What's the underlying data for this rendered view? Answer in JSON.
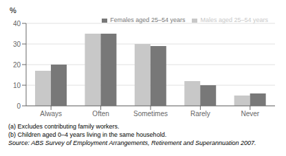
{
  "chart_data": {
    "type": "bar",
    "categories": [
      "Always",
      "Often",
      "Sometimes",
      "Rarely",
      "Never"
    ],
    "series": [
      {
        "name": "Males aged 25–54 years",
        "color": "#c8c8c8",
        "values": [
          17,
          35,
          30,
          12,
          5
        ]
      },
      {
        "name": "Females aged 25–54 years",
        "color": "#787878",
        "values": [
          20,
          35,
          29,
          10,
          6
        ]
      }
    ],
    "y_label": "%",
    "ylim": [
      0,
      40
    ],
    "yticks": [
      0,
      10,
      20,
      30,
      40
    ],
    "grid": true,
    "legend": "upper right",
    "annotations": [
      "(a) Excludes contributing family workers.",
      "(b) Children aged 0–4 years living in the same household.",
      "Source: ABS Survey of Employment Arrangements, Retirement and Superannuation 2007."
    ]
  }
}
